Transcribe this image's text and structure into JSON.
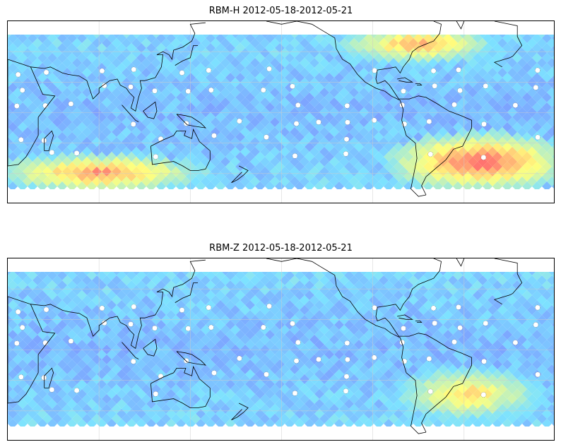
{
  "panels": [
    {
      "title": "RBM-H 2012-05-18-2012-05-21",
      "hot_regions": [
        {
          "name": "south-indian-ocean",
          "lon0": 20,
          "lon1": 140,
          "lat0": -45,
          "lat1": -34,
          "intensity": 0.9
        },
        {
          "name": "south-atlantic-anomaly",
          "lon0": 280,
          "lon1": 380,
          "lat0": -45,
          "lat1": -20,
          "intensity": 1.0
        },
        {
          "name": "north-pacific-band",
          "lon0": 250,
          "lon1": 330,
          "lat0": 40,
          "lat1": 50,
          "intensity": 0.85
        }
      ]
    },
    {
      "title": "RBM-Z 2012-05-18-2012-05-21",
      "hot_regions": [
        {
          "name": "south-atlantic-anomaly",
          "lon0": 285,
          "lon1": 360,
          "lat0": -40,
          "lat1": -18,
          "intensity": 0.75
        }
      ]
    }
  ],
  "colors": {
    "low": "#6666ff",
    "mid": "#66ddff",
    "high": "#ffff66",
    "peak": "#ff5555",
    "coast": "#000000",
    "grid": "#cccccc"
  }
}
